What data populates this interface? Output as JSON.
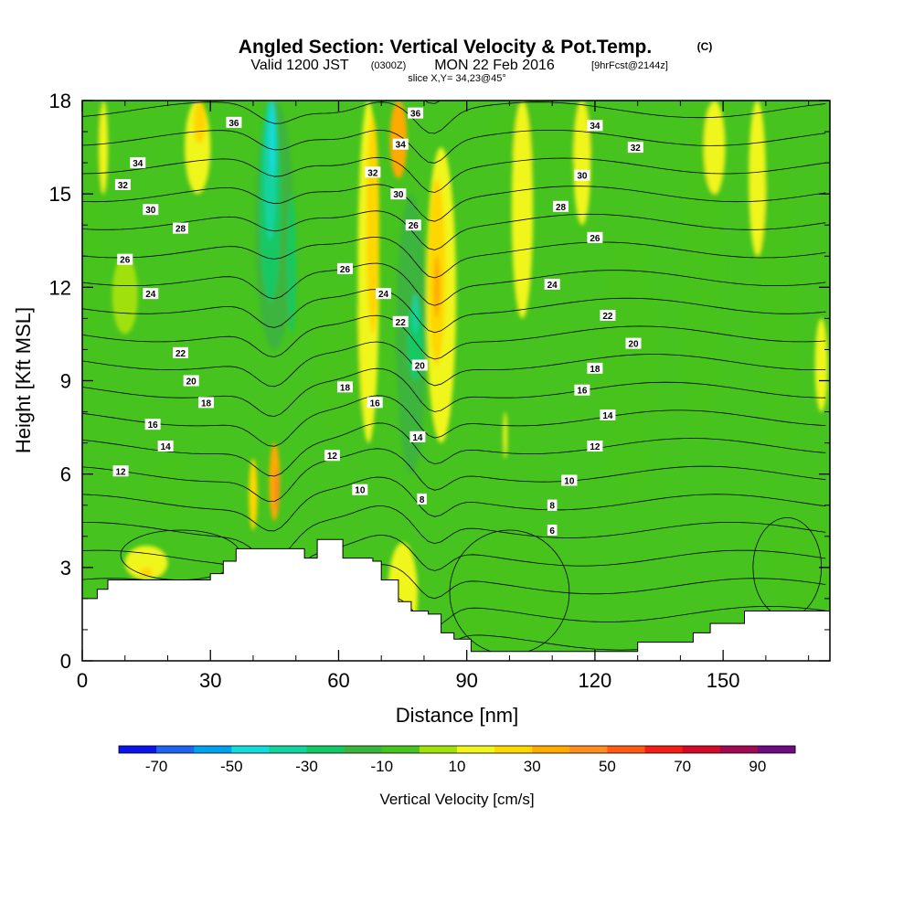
{
  "title": {
    "main": "Angled Section: Vertical Velocity & Pot.Temp.",
    "main_unit": "(C)",
    "valid_prefix": "Valid 1200 JST",
    "valid_utc": "(0300Z)",
    "valid_date": "MON 22 Feb 2016",
    "forecast": "[9hrFcst@2144z]",
    "slice": "slice X,Y= 34,23@45°"
  },
  "chart_data": {
    "type": "heatmap",
    "xlabel": "Distance [nm]",
    "ylabel": "Height [Kft MSL]",
    "xlim": [
      0,
      175
    ],
    "ylim": [
      0,
      18
    ],
    "x_ticks": [
      0,
      30,
      60,
      90,
      120,
      150
    ],
    "y_ticks": [
      0,
      3,
      6,
      9,
      12,
      15,
      18
    ],
    "colorbar": {
      "title": "Vertical Velocity [cm/s]",
      "levels": [
        -80,
        -70,
        -60,
        -50,
        -40,
        -30,
        -20,
        -10,
        0,
        10,
        20,
        30,
        40,
        50,
        60,
        70,
        80,
        90,
        100
      ],
      "tick_labels": [
        -70,
        -50,
        -30,
        -10,
        10,
        30,
        50,
        70,
        90
      ],
      "colors": [
        "#0a14e6",
        "#1e64f0",
        "#00a0f0",
        "#14dcdc",
        "#14d2a0",
        "#14c864",
        "#3cb43c",
        "#46c31e",
        "#a0e10a",
        "#f0f51e",
        "#ffd700",
        "#ffaa00",
        "#ff8c1e",
        "#ff5a14",
        "#f01e14",
        "#d20a28",
        "#a00a50",
        "#6e0a82"
      ]
    },
    "terrain_kft": [
      [
        0,
        2.0
      ],
      [
        3.5,
        2.3
      ],
      [
        6,
        2.6
      ],
      [
        25,
        2.6
      ],
      [
        30,
        2.8
      ],
      [
        33,
        3.2
      ],
      [
        36,
        3.6
      ],
      [
        49,
        3.6
      ],
      [
        52,
        3.3
      ],
      [
        55,
        3.9
      ],
      [
        61,
        3.3
      ],
      [
        68,
        3.2
      ],
      [
        70,
        2.6
      ],
      [
        74,
        1.9
      ],
      [
        77,
        1.6
      ],
      [
        81,
        1.5
      ],
      [
        84,
        0.9
      ],
      [
        87,
        0.7
      ],
      [
        91,
        0.3
      ],
      [
        128,
        0.3
      ],
      [
        130,
        0.6
      ],
      [
        142,
        0.6
      ],
      [
        143,
        0.9
      ],
      [
        146,
        0.9
      ],
      [
        147,
        1.2
      ],
      [
        152,
        1.2
      ],
      [
        155,
        1.6
      ],
      [
        159,
        1.6
      ],
      [
        160,
        1.6
      ],
      [
        175,
        1.6
      ]
    ],
    "updraft_bands": [
      {
        "x": 5,
        "y0": 15,
        "y1": 18,
        "w": 2,
        "value": 15
      },
      {
        "x": 27,
        "y0": 15,
        "y1": 18,
        "w": 6,
        "value": 15
      },
      {
        "x": 27.5,
        "y0": 16.6,
        "y1": 18,
        "w": 3,
        "value": 25
      },
      {
        "x": 40,
        "y0": 4.2,
        "y1": 6.5,
        "w": 2,
        "value": 25
      },
      {
        "x": 45,
        "y0": 4.5,
        "y1": 7,
        "w": 2.5,
        "value": 35
      },
      {
        "x": 45.5,
        "y0": 4.8,
        "y1": 6.2,
        "w": 1.2,
        "value": 45
      },
      {
        "x": 67,
        "y0": 7,
        "y1": 18,
        "w": 5,
        "value": 15
      },
      {
        "x": 68,
        "y0": 10.5,
        "y1": 17.5,
        "w": 3,
        "value": 25
      },
      {
        "x": 74,
        "y0": 15.5,
        "y1": 18,
        "w": 4,
        "value": 35
      },
      {
        "x": 84,
        "y0": 7,
        "y1": 16.5,
        "w": 7,
        "value": 15
      },
      {
        "x": 83,
        "y0": 9.5,
        "y1": 15.5,
        "w": 4,
        "value": 25
      },
      {
        "x": 83,
        "y0": 11,
        "y1": 13,
        "w": 1.5,
        "value": 35
      },
      {
        "x": 99,
        "y0": 6.5,
        "y1": 8.0,
        "w": 1,
        "value": 15
      },
      {
        "x": 103,
        "y0": 11,
        "y1": 18,
        "w": 5,
        "value": 15
      },
      {
        "x": 117,
        "y0": 14,
        "y1": 18,
        "w": 4,
        "value": 15
      },
      {
        "x": 148,
        "y0": 15,
        "y1": 18,
        "w": 5,
        "value": 15
      },
      {
        "x": 158,
        "y0": 13,
        "y1": 18,
        "w": 4,
        "value": 15
      },
      {
        "x": 173,
        "y0": 8,
        "y1": 11,
        "w": 3,
        "value": 15
      },
      {
        "x": 15,
        "y0": 2.6,
        "y1": 3.7,
        "w": 10,
        "value": 15
      },
      {
        "x": 15,
        "y0": 2.7,
        "y1": 3.0,
        "w": 3,
        "value": 25
      },
      {
        "x": 10,
        "y0": 10.5,
        "y1": 13,
        "w": 6,
        "value": 5
      },
      {
        "x": 75,
        "y0": 0.5,
        "y1": 3.8,
        "w": 7,
        "value": 15
      }
    ],
    "downdraft_bands": [
      {
        "x": 3,
        "y0": 10,
        "y1": 18,
        "w": 4,
        "value": -5
      },
      {
        "x": 45,
        "y0": 10,
        "y1": 18,
        "w": 9,
        "value": -15
      },
      {
        "x": 44,
        "y0": 11.5,
        "y1": 18,
        "w": 5,
        "value": -25
      },
      {
        "x": 44,
        "y0": 13.5,
        "y1": 18,
        "w": 3,
        "value": -35
      },
      {
        "x": 44.5,
        "y0": 15.5,
        "y1": 18,
        "w": 1.5,
        "value": -45
      },
      {
        "x": 49,
        "y0": 10.5,
        "y1": 15,
        "w": 2,
        "value": -25
      },
      {
        "x": 77,
        "y0": 6,
        "y1": 15,
        "w": 7,
        "value": -15
      },
      {
        "x": 78,
        "y0": 9,
        "y1": 11.5,
        "w": 4,
        "value": -25
      },
      {
        "x": 78,
        "y0": 10.5,
        "y1": 11.8,
        "w": 1.5,
        "value": -35
      },
      {
        "x": 60,
        "y0": 7,
        "y1": 12,
        "w": 12,
        "value": -5
      },
      {
        "x": 128,
        "y0": 5,
        "y1": 14,
        "w": 14,
        "value": -5
      },
      {
        "x": 145,
        "y0": 7,
        "y1": 18,
        "w": 10,
        "value": -5
      },
      {
        "x": 163,
        "y0": 6.5,
        "y1": 16,
        "w": 10,
        "value": -5
      },
      {
        "x": 100,
        "y0": 0.3,
        "y1": 4.2,
        "w": 28,
        "value": -5
      },
      {
        "x": 168,
        "y0": 1.6,
        "y1": 4.6,
        "w": 14,
        "value": -5
      },
      {
        "x": 20,
        "y0": 4.5,
        "y1": 6.5,
        "w": 12,
        "value": -5
      },
      {
        "x": 110,
        "y0": 16,
        "y1": 18,
        "w": 30,
        "value": -5
      }
    ],
    "theta_contours": [
      {
        "value": 6,
        "label_at": [
          110,
          4.2
        ]
      },
      {
        "value": 8,
        "label_at": [
          110,
          5.0
        ]
      },
      {
        "value": 10,
        "label_at": [
          114,
          5.8
        ]
      },
      {
        "value": 12,
        "label_at": [
          9,
          6.1
        ]
      },
      {
        "value": 14,
        "label_at": [
          19.5,
          6.9
        ]
      },
      {
        "value": 16,
        "label_at": [
          16.5,
          7.6
        ]
      },
      {
        "value": 18,
        "label_at": [
          29,
          8.3
        ]
      },
      {
        "value": 20,
        "label_at": [
          25.5,
          9.0
        ]
      },
      {
        "value": 22,
        "label_at": [
          23,
          9.9
        ]
      },
      {
        "value": 24,
        "label_at": [
          16,
          11.8
        ]
      },
      {
        "value": 26,
        "label_at": [
          10,
          12.9
        ]
      },
      {
        "value": 28,
        "label_at": [
          23,
          13.9
        ]
      },
      {
        "value": 30,
        "label_at": [
          16,
          14.5
        ]
      },
      {
        "value": 32,
        "label_at": [
          9.5,
          15.3
        ]
      },
      {
        "value": 34,
        "label_at": [
          13,
          16.0
        ]
      },
      {
        "value": 36,
        "label_at": [
          35.5,
          17.3
        ]
      }
    ],
    "extra_labels": [
      {
        "value": 36,
        "x": 78,
        "y": 17.6
      },
      {
        "value": 34,
        "x": 74.5,
        "y": 16.6
      },
      {
        "value": 32,
        "x": 68,
        "y": 15.7
      },
      {
        "value": 30,
        "x": 74,
        "y": 15.0
      },
      {
        "value": 26,
        "x": 77.5,
        "y": 14.0
      },
      {
        "value": 26,
        "x": 61.5,
        "y": 12.6
      },
      {
        "value": 24,
        "x": 70.5,
        "y": 11.8
      },
      {
        "value": 22,
        "x": 74.5,
        "y": 10.9
      },
      {
        "value": 20,
        "x": 79,
        "y": 9.5
      },
      {
        "value": 18,
        "x": 61.5,
        "y": 8.8
      },
      {
        "value": 16,
        "x": 68.5,
        "y": 8.3
      },
      {
        "value": 14,
        "x": 78.5,
        "y": 7.2
      },
      {
        "value": 12,
        "x": 58.5,
        "y": 6.6
      },
      {
        "value": 10,
        "x": 65,
        "y": 5.5
      },
      {
        "value": 8,
        "x": 79.5,
        "y": 5.2
      },
      {
        "value": 34,
        "x": 120,
        "y": 17.2
      },
      {
        "value": 32,
        "x": 129.5,
        "y": 16.5
      },
      {
        "value": 30,
        "x": 117,
        "y": 15.6
      },
      {
        "value": 28,
        "x": 112,
        "y": 14.6
      },
      {
        "value": 26,
        "x": 120,
        "y": 13.6
      },
      {
        "value": 24,
        "x": 110,
        "y": 12.1
      },
      {
        "value": 22,
        "x": 123,
        "y": 11.1
      },
      {
        "value": 20,
        "x": 129,
        "y": 10.2
      },
      {
        "value": 18,
        "x": 120,
        "y": 9.4
      },
      {
        "value": 16,
        "x": 117,
        "y": 8.7
      },
      {
        "value": 14,
        "x": 123,
        "y": 7.9
      },
      {
        "value": 12,
        "x": 120,
        "y": 6.9
      },
      {
        "value": 10,
        "x": 114,
        "y": 5.8
      },
      {
        "value": 8,
        "x": 110,
        "y": 5.0
      },
      {
        "value": 6,
        "x": 110,
        "y": 4.2
      }
    ]
  }
}
